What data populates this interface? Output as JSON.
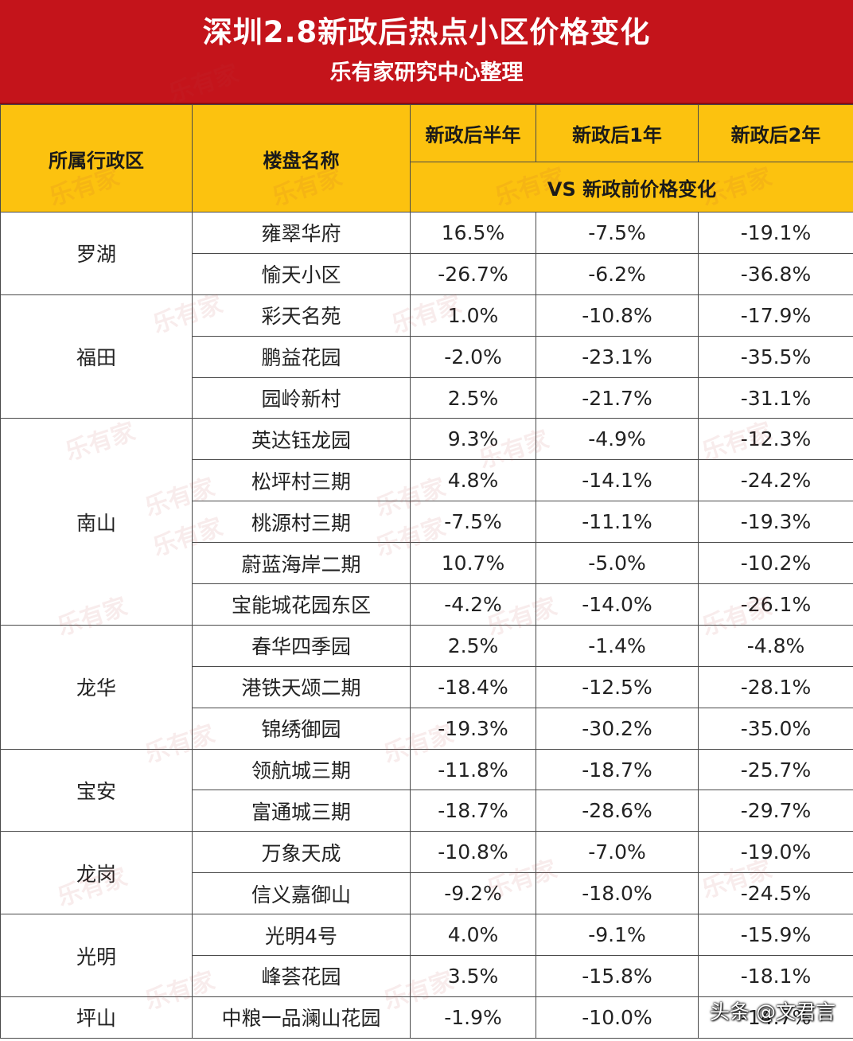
{
  "title": "深圳2.8新政后热点小区价格变化",
  "subtitle": "乐有家研究中心整理",
  "headers": {
    "district": "所属行政区",
    "project": "楼盘名称",
    "half_year": "新政后半年",
    "one_year": "新政后1年",
    "two_year": "新政后2年",
    "compare": "VS 新政前价格变化"
  },
  "watermark_text": "乐有家",
  "rows": [
    {
      "district": "罗湖",
      "project": "雍翠华府",
      "half_year": "16.5%",
      "one_year": "-7.5%",
      "two_year": "-19.1%"
    },
    {
      "district": "罗湖",
      "project": "愉天小区",
      "half_year": "-26.7%",
      "one_year": "-6.2%",
      "two_year": "-36.8%"
    },
    {
      "district": "福田",
      "project": "彩天名苑",
      "half_year": "1.0%",
      "one_year": "-10.8%",
      "two_year": "-17.9%"
    },
    {
      "district": "福田",
      "project": "鹏益花园",
      "half_year": "-2.0%",
      "one_year": "-23.1%",
      "two_year": "-35.5%"
    },
    {
      "district": "福田",
      "project": "园岭新村",
      "half_year": "2.5%",
      "one_year": "-21.7%",
      "two_year": "-31.1%"
    },
    {
      "district": "南山",
      "project": "英达钰龙园",
      "half_year": "9.3%",
      "one_year": "-4.9%",
      "two_year": "-12.3%"
    },
    {
      "district": "南山",
      "project": "松坪村三期",
      "half_year": "4.8%",
      "one_year": "-14.1%",
      "two_year": "-24.2%"
    },
    {
      "district": "南山",
      "project": "桃源村三期",
      "half_year": "-7.5%",
      "one_year": "-11.1%",
      "two_year": "-19.3%"
    },
    {
      "district": "南山",
      "project": "蔚蓝海岸二期",
      "half_year": "10.7%",
      "one_year": "-5.0%",
      "two_year": "-10.2%"
    },
    {
      "district": "南山",
      "project": "宝能城花园东区",
      "half_year": "-4.2%",
      "one_year": "-14.0%",
      "two_year": "-26.1%"
    },
    {
      "district": "龙华",
      "project": "春华四季园",
      "half_year": "2.5%",
      "one_year": "-1.4%",
      "two_year": "-4.8%"
    },
    {
      "district": "龙华",
      "project": "港铁天颂二期",
      "half_year": "-18.4%",
      "one_year": "-12.5%",
      "two_year": "-28.1%"
    },
    {
      "district": "龙华",
      "project": "锦绣御园",
      "half_year": "-19.3%",
      "one_year": "-30.2%",
      "two_year": "-35.0%"
    },
    {
      "district": "宝安",
      "project": "领航城三期",
      "half_year": "-11.8%",
      "one_year": "-18.7%",
      "two_year": "-25.7%"
    },
    {
      "district": "宝安",
      "project": "富通城三期",
      "half_year": "-18.7%",
      "one_year": "-28.6%",
      "two_year": "-29.7%"
    },
    {
      "district": "龙岗",
      "project": "万象天成",
      "half_year": "-10.8%",
      "one_year": "-7.0%",
      "two_year": "-19.0%"
    },
    {
      "district": "龙岗",
      "project": "信义嘉御山",
      "half_year": "-9.2%",
      "one_year": "-18.0%",
      "two_year": "-24.5%"
    },
    {
      "district": "光明",
      "project": "光明4号",
      "half_year": "4.0%",
      "one_year": "-9.1%",
      "two_year": "-15.9%"
    },
    {
      "district": "光明",
      "project": "峰荟花园",
      "half_year": "3.5%",
      "one_year": "-15.8%",
      "two_year": "-18.1%"
    },
    {
      "district": "坪山",
      "project": "中粮一品澜山花园",
      "half_year": "-1.9%",
      "one_year": "-10.0%",
      "two_year": "-14.7%"
    }
  ],
  "footer_credit": "头条 @文君言",
  "colors": {
    "banner": "#c4141b",
    "header": "#fcc20f",
    "border": "#4a4a4a"
  }
}
